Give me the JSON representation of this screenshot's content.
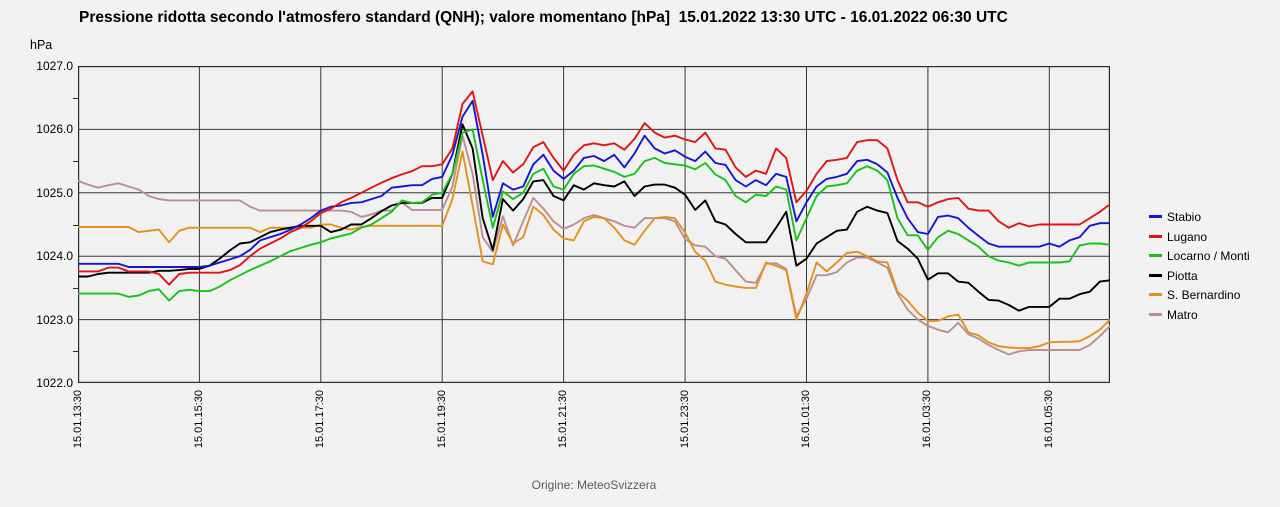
{
  "header": {
    "title": "Pressione ridotta secondo l'atmosfero standard (QNH); valore momentano [hPa]  15.01.2022 13:30 UTC - 16.01.2022 06:30 UTC"
  },
  "axes": {
    "y_unit": "hPa",
    "y_ticks": [
      "1027.0",
      "1026.0",
      "1025.0",
      "1024.0",
      "1023.0",
      "1022.0"
    ],
    "x_ticks": [
      "15.01.13:30",
      "15.01.15:30",
      "15.01.17:30",
      "15.01.19:30",
      "15.01.21:30",
      "15.01.23:30",
      "16.01.01:30",
      "16.01.03:30",
      "16.01.05:30"
    ]
  },
  "legend": {
    "position": "right",
    "items": [
      "Stabio",
      "Lugano",
      "Locarno / Monti",
      "Piotta",
      "S. Bernardino",
      "Matro"
    ]
  },
  "footer": {
    "source": "Origine: MeteoSvizzera"
  },
  "chart_data": {
    "type": "line",
    "title": "Pressione ridotta secondo l'atmosfero standard (QNH); valore momentano [hPa] 15.01.2022 13:30 UTC - 16.01.2022 06:30 UTC",
    "ylabel": "hPa",
    "xlabel": "",
    "ylim": [
      1022.0,
      1027.0
    ],
    "y_major_step": 1.0,
    "y_minor_step": 0.5,
    "grid": true,
    "x_start": "15.01.2022 13:30 UTC",
    "x_end": "16.01.2022 06:30 UTC",
    "x_step_minutes": 10,
    "x_tick_every_points": 12,
    "x_tick_labels": [
      "15.01.13:30",
      "15.01.15:30",
      "15.01.17:30",
      "15.01.19:30",
      "15.01.21:30",
      "15.01.23:30",
      "16.01.01:30",
      "16.01.03:30",
      "16.01.05:30"
    ],
    "colors": {
      "grid": "#383838",
      "border": "#2b2b2b",
      "stabio": "#1616cf",
      "lugano": "#e11414",
      "locarno_monti": "#16c316",
      "piotta": "#000000",
      "s_bernardino": "#e2921c",
      "matro": "#bc8f8f"
    },
    "series": [
      {
        "name": "Stabio",
        "color": "#1616cf",
        "values": [
          1023.88,
          1023.88,
          1023.88,
          1023.88,
          1023.88,
          1023.83,
          1023.83,
          1023.83,
          1023.83,
          1023.83,
          1023.83,
          1023.83,
          1023.83,
          1023.85,
          1023.9,
          1023.95,
          1024.0,
          1024.1,
          1024.25,
          1024.3,
          1024.35,
          1024.42,
          1024.5,
          1024.6,
          1024.72,
          1024.78,
          1024.8,
          1024.84,
          1024.85,
          1024.9,
          1024.95,
          1025.08,
          1025.1,
          1025.12,
          1025.12,
          1025.22,
          1025.25,
          1025.6,
          1026.2,
          1026.45,
          1025.6,
          1024.62,
          1025.15,
          1025.05,
          1025.1,
          1025.45,
          1025.6,
          1025.35,
          1025.22,
          1025.35,
          1025.55,
          1025.58,
          1025.5,
          1025.6,
          1025.4,
          1025.62,
          1025.9,
          1025.7,
          1025.62,
          1025.67,
          1025.57,
          1025.5,
          1025.65,
          1025.47,
          1025.44,
          1025.2,
          1025.1,
          1025.2,
          1025.12,
          1025.3,
          1025.25,
          1024.55,
          1024.85,
          1025.1,
          1025.22,
          1025.25,
          1025.3,
          1025.5,
          1025.52,
          1025.45,
          1025.32,
          1024.92,
          1024.6,
          1024.38,
          1024.35,
          1024.62,
          1024.64,
          1024.6,
          1024.45,
          1024.32,
          1024.2,
          1024.15,
          1024.15,
          1024.15,
          1024.15,
          1024.15,
          1024.2,
          1024.15,
          1024.25,
          1024.3,
          1024.48,
          1024.52,
          1024.52
        ]
      },
      {
        "name": "Lugano",
        "color": "#e11414",
        "values": [
          1023.76,
          1023.76,
          1023.76,
          1023.82,
          1023.82,
          1023.76,
          1023.76,
          1023.76,
          1023.72,
          1023.55,
          1023.72,
          1023.74,
          1023.74,
          1023.74,
          1023.74,
          1023.78,
          1023.86,
          1024.0,
          1024.12,
          1024.2,
          1024.28,
          1024.38,
          1024.45,
          1024.55,
          1024.68,
          1024.75,
          1024.85,
          1024.92,
          1025.0,
          1025.08,
          1025.16,
          1025.23,
          1025.29,
          1025.34,
          1025.42,
          1025.42,
          1025.45,
          1025.7,
          1026.4,
          1026.6,
          1025.9,
          1025.2,
          1025.5,
          1025.32,
          1025.45,
          1025.72,
          1025.8,
          1025.55,
          1025.35,
          1025.6,
          1025.75,
          1025.78,
          1025.75,
          1025.78,
          1025.68,
          1025.85,
          1026.1,
          1025.95,
          1025.87,
          1025.9,
          1025.84,
          1025.8,
          1025.95,
          1025.7,
          1025.68,
          1025.4,
          1025.25,
          1025.35,
          1025.3,
          1025.7,
          1025.55,
          1024.85,
          1025.03,
          1025.3,
          1025.5,
          1025.52,
          1025.55,
          1025.8,
          1025.83,
          1025.83,
          1025.7,
          1025.2,
          1024.85,
          1024.85,
          1024.78,
          1024.85,
          1024.9,
          1024.92,
          1024.75,
          1024.72,
          1024.72,
          1024.55,
          1024.45,
          1024.52,
          1024.47,
          1024.5,
          1024.5,
          1024.5,
          1024.5,
          1024.5,
          1024.6,
          1024.7,
          1024.82
        ]
      },
      {
        "name": "Locarno / Monti",
        "color": "#16c316",
        "values": [
          1023.41,
          1023.41,
          1023.41,
          1023.41,
          1023.41,
          1023.36,
          1023.38,
          1023.45,
          1023.48,
          1023.3,
          1023.45,
          1023.47,
          1023.45,
          1023.45,
          1023.52,
          1023.62,
          1023.7,
          1023.78,
          1023.85,
          1023.92,
          1024.0,
          1024.08,
          1024.13,
          1024.18,
          1024.22,
          1024.28,
          1024.32,
          1024.36,
          1024.45,
          1024.5,
          1024.6,
          1024.7,
          1024.88,
          1024.84,
          1024.85,
          1024.97,
          1025.0,
          1025.3,
          1025.95,
          1026.0,
          1025.2,
          1024.45,
          1025.02,
          1024.9,
          1025.0,
          1025.3,
          1025.38,
          1025.1,
          1025.05,
          1025.3,
          1025.42,
          1025.43,
          1025.38,
          1025.33,
          1025.25,
          1025.3,
          1025.5,
          1025.55,
          1025.47,
          1025.45,
          1025.43,
          1025.37,
          1025.47,
          1025.29,
          1025.2,
          1024.95,
          1024.85,
          1024.97,
          1024.95,
          1025.1,
          1025.05,
          1024.25,
          1024.6,
          1024.95,
          1025.1,
          1025.12,
          1025.15,
          1025.35,
          1025.42,
          1025.35,
          1025.2,
          1024.6,
          1024.33,
          1024.33,
          1024.1,
          1024.3,
          1024.4,
          1024.35,
          1024.25,
          1024.15,
          1024.0,
          1023.93,
          1023.9,
          1023.85,
          1023.9,
          1023.9,
          1023.9,
          1023.9,
          1023.92,
          1024.17,
          1024.2,
          1024.2,
          1024.18
        ]
      },
      {
        "name": "Piotta",
        "color": "#000000",
        "values": [
          1023.68,
          1023.68,
          1023.72,
          1023.74,
          1023.74,
          1023.74,
          1023.74,
          1023.74,
          1023.77,
          1023.77,
          1023.78,
          1023.8,
          1023.8,
          1023.85,
          1023.96,
          1024.09,
          1024.2,
          1024.22,
          1024.3,
          1024.38,
          1024.42,
          1024.45,
          1024.48,
          1024.48,
          1024.48,
          1024.38,
          1024.42,
          1024.5,
          1024.5,
          1024.6,
          1024.71,
          1024.8,
          1024.84,
          1024.84,
          1024.84,
          1024.92,
          1024.92,
          1025.3,
          1026.08,
          1025.7,
          1024.6,
          1024.1,
          1024.9,
          1024.72,
          1024.9,
          1025.18,
          1025.2,
          1024.95,
          1024.88,
          1025.12,
          1025.05,
          1025.15,
          1025.12,
          1025.1,
          1025.18,
          1024.95,
          1025.1,
          1025.13,
          1025.13,
          1025.08,
          1024.97,
          1024.73,
          1024.88,
          1024.55,
          1024.5,
          1024.35,
          1024.22,
          1024.22,
          1024.22,
          1024.45,
          1024.7,
          1023.85,
          1023.96,
          1024.2,
          1024.3,
          1024.4,
          1024.42,
          1024.7,
          1024.78,
          1024.72,
          1024.68,
          1024.24,
          1024.12,
          1023.96,
          1023.63,
          1023.73,
          1023.73,
          1023.6,
          1023.58,
          1023.44,
          1023.31,
          1023.3,
          1023.23,
          1023.14,
          1023.2,
          1023.2,
          1023.2,
          1023.33,
          1023.33,
          1023.4,
          1023.44,
          1023.6,
          1023.62
        ]
      },
      {
        "name": "S. Bernardino",
        "color": "#e2921c",
        "values": [
          1024.46,
          1024.46,
          1024.46,
          1024.46,
          1024.46,
          1024.46,
          1024.38,
          1024.4,
          1024.42,
          1024.22,
          1024.4,
          1024.45,
          1024.45,
          1024.45,
          1024.45,
          1024.45,
          1024.45,
          1024.45,
          1024.38,
          1024.45,
          1024.45,
          1024.45,
          1024.45,
          1024.45,
          1024.5,
          1024.5,
          1024.45,
          1024.42,
          1024.46,
          1024.48,
          1024.48,
          1024.48,
          1024.48,
          1024.48,
          1024.48,
          1024.48,
          1024.48,
          1024.9,
          1025.65,
          1024.8,
          1023.92,
          1023.87,
          1024.5,
          1024.2,
          1024.3,
          1024.78,
          1024.65,
          1024.42,
          1024.28,
          1024.25,
          1024.55,
          1024.62,
          1024.6,
          1024.45,
          1024.25,
          1024.18,
          1024.4,
          1024.6,
          1024.62,
          1024.6,
          1024.37,
          1024.07,
          1023.93,
          1023.6,
          1023.55,
          1023.52,
          1023.5,
          1023.5,
          1023.9,
          1023.85,
          1023.78,
          1023.0,
          1023.41,
          1023.9,
          1023.76,
          1023.9,
          1024.05,
          1024.07,
          1024.0,
          1023.92,
          1023.9,
          1023.44,
          1023.3,
          1023.11,
          1022.98,
          1022.98,
          1023.05,
          1023.08,
          1022.8,
          1022.75,
          1022.64,
          1022.58,
          1022.56,
          1022.55,
          1022.55,
          1022.58,
          1022.64,
          1022.65,
          1022.65,
          1022.66,
          1022.74,
          1022.84,
          1023.0
        ]
      },
      {
        "name": "Matro",
        "color": "#bc8f8f",
        "values": [
          1025.19,
          1025.13,
          1025.08,
          1025.12,
          1025.15,
          1025.1,
          1025.05,
          1024.95,
          1024.9,
          1024.88,
          1024.88,
          1024.88,
          1024.88,
          1024.88,
          1024.88,
          1024.88,
          1024.88,
          1024.78,
          1024.72,
          1024.72,
          1024.72,
          1024.72,
          1024.72,
          1024.72,
          1024.72,
          1024.72,
          1024.72,
          1024.7,
          1024.62,
          1024.66,
          1024.72,
          1024.72,
          1024.85,
          1024.73,
          1024.73,
          1024.73,
          1024.73,
          1025.1,
          1025.9,
          1025.3,
          1024.3,
          1024.07,
          1024.63,
          1024.17,
          1024.55,
          1024.92,
          1024.75,
          1024.55,
          1024.43,
          1024.5,
          1024.6,
          1024.65,
          1024.6,
          1024.55,
          1024.48,
          1024.45,
          1024.6,
          1024.6,
          1024.6,
          1024.55,
          1024.27,
          1024.17,
          1024.15,
          1024.0,
          1023.96,
          1023.78,
          1023.6,
          1023.58,
          1023.88,
          1023.89,
          1023.8,
          1023.05,
          1023.33,
          1023.7,
          1023.7,
          1023.75,
          1023.9,
          1023.98,
          1023.98,
          1023.9,
          1023.82,
          1023.41,
          1023.16,
          1023.0,
          1022.9,
          1022.84,
          1022.8,
          1022.95,
          1022.77,
          1022.7,
          1022.6,
          1022.52,
          1022.45,
          1022.5,
          1022.52,
          1022.52,
          1022.52,
          1022.52,
          1022.52,
          1022.52,
          1022.6,
          1022.74,
          1022.9
        ]
      }
    ]
  }
}
